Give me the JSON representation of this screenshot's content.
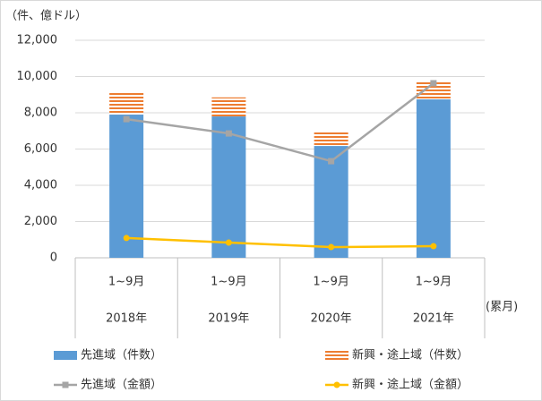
{
  "chart_data": {
    "type": "combo",
    "y_label": "（件、億ドル）",
    "x_label": "(累月)",
    "categories": [
      "2018年",
      "2019年",
      "2020年",
      "2021年"
    ],
    "periods": [
      "1~9月",
      "1~9月",
      "1~9月",
      "1~9月"
    ],
    "ylim": [
      0,
      12000
    ],
    "yticks": [
      0,
      {
        "value": 2000,
        "label": "2,000"
      },
      {
        "value": 4000,
        "label": "4,000"
      },
      {
        "value": 6000,
        "label": "6,000"
      },
      {
        "value": 8000,
        "label": "8,000"
      },
      {
        "value": 10000,
        "label": "10,000"
      },
      {
        "value": 12000,
        "label": "12,000"
      }
    ],
    "grid": true,
    "series": [
      {
        "name": "先進域（件数）",
        "type": "bar",
        "color": "#5b9bd5",
        "values": [
          7900,
          7800,
          6170,
          8740
        ]
      },
      {
        "name": "新興・途上域（件数）",
        "type": "bar",
        "color": "#ed7d31",
        "pattern": "horizontal-stripes",
        "values": [
          1200,
          1050,
          800,
          1000
        ]
      },
      {
        "name": "先進域（金額）",
        "type": "line",
        "color": "#a5a5a5",
        "marker": "square",
        "values": [
          7650,
          6860,
          5330,
          9630
        ]
      },
      {
        "name": "新興・途上域（金額）",
        "type": "line",
        "color": "#ffc000",
        "marker": "circle",
        "values": [
          1090,
          840,
          590,
          640
        ]
      }
    ]
  }
}
